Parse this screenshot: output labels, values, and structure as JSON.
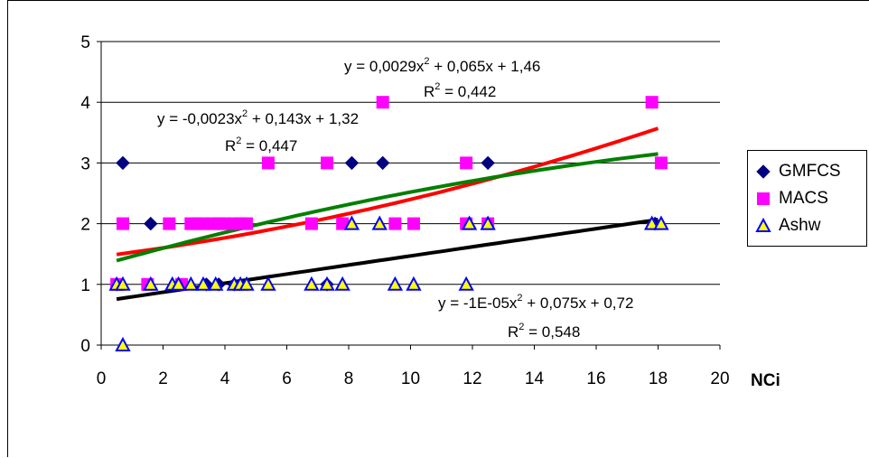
{
  "chart_data": {
    "type": "scatter",
    "xlabel": "NCi",
    "ylabel": "",
    "xlim": [
      0,
      20
    ],
    "ylim": [
      0,
      5
    ],
    "x_ticks": [
      "0",
      "2",
      "4",
      "6",
      "8",
      "10",
      "12",
      "14",
      "16",
      "18",
      "20"
    ],
    "y_ticks": [
      "0",
      "1",
      "2",
      "3",
      "4",
      "5"
    ],
    "grid": "horizontal",
    "legend_position": "right",
    "series": [
      {
        "name": "GMFCS",
        "marker": "diamond",
        "color": "#000080",
        "points": [
          [
            0.5,
            1
          ],
          [
            0.7,
            3
          ],
          [
            1.6,
            2
          ],
          [
            2.5,
            1
          ],
          [
            3.4,
            1
          ],
          [
            3.8,
            1
          ],
          [
            4.3,
            1
          ],
          [
            7.3,
            1
          ],
          [
            8.1,
            3
          ],
          [
            9.1,
            3
          ],
          [
            12.5,
            3
          ],
          [
            17.9,
            2
          ]
        ]
      },
      {
        "name": "MACS",
        "marker": "square",
        "color": "#FF00FF",
        "points": [
          [
            0.5,
            1
          ],
          [
            0.7,
            2
          ],
          [
            1.5,
            1
          ],
          [
            2.2,
            2
          ],
          [
            2.6,
            1
          ],
          [
            2.9,
            2
          ],
          [
            3.1,
            2
          ],
          [
            3.3,
            2
          ],
          [
            3.6,
            2
          ],
          [
            3.8,
            2
          ],
          [
            4.0,
            2
          ],
          [
            4.3,
            2
          ],
          [
            4.5,
            2
          ],
          [
            4.7,
            2
          ],
          [
            5.4,
            3
          ],
          [
            6.8,
            2
          ],
          [
            7.3,
            3
          ],
          [
            7.8,
            2
          ],
          [
            9.1,
            4
          ],
          [
            9.5,
            2
          ],
          [
            10.1,
            2
          ],
          [
            11.8,
            2
          ],
          [
            11.8,
            3
          ],
          [
            12.5,
            2
          ],
          [
            17.8,
            4
          ],
          [
            18.1,
            3
          ]
        ]
      },
      {
        "name": "Ashw",
        "marker": "triangle",
        "color": "#0000FF",
        "fill": "#FFFF00",
        "points": [
          [
            0.5,
            1
          ],
          [
            0.7,
            1
          ],
          [
            0.7,
            0
          ],
          [
            1.6,
            1
          ],
          [
            2.3,
            1
          ],
          [
            2.5,
            1
          ],
          [
            2.9,
            1
          ],
          [
            3.3,
            1
          ],
          [
            3.7,
            1
          ],
          [
            4.3,
            1
          ],
          [
            4.5,
            1
          ],
          [
            4.7,
            1
          ],
          [
            5.4,
            1
          ],
          [
            6.8,
            1
          ],
          [
            7.3,
            1
          ],
          [
            7.8,
            1
          ],
          [
            8.1,
            2
          ],
          [
            9.0,
            2
          ],
          [
            9.5,
            1
          ],
          [
            10.1,
            1
          ],
          [
            11.8,
            1
          ],
          [
            11.9,
            2
          ],
          [
            12.5,
            2
          ],
          [
            17.8,
            2
          ],
          [
            18.1,
            2
          ]
        ]
      }
    ],
    "trendlines": [
      {
        "series": "MACS",
        "color": "#FF0000",
        "a": 0.0029,
        "b": 0.065,
        "c": 1.46,
        "x_range": [
          0.5,
          18
        ],
        "equation": "y = 0,0029x",
        "equation_tail": " + 0,065x + 1,46",
        "r2_value": " = 0,442"
      },
      {
        "series": "GMFCS",
        "color": "#008000",
        "a": -0.0023,
        "b": 0.143,
        "c": 1.32,
        "x_range": [
          0.5,
          18
        ],
        "equation": "y = -0,0023x",
        "equation_tail": " + 0,143x + 1,32",
        "r2_value": " = 0,447"
      },
      {
        "series": "Ashw",
        "color": "#000000",
        "a": -1e-05,
        "b": 0.075,
        "c": 0.72,
        "x_range": [
          0.5,
          18
        ],
        "equation": "y = -1E-05x",
        "equation_tail": " + 0,075x + 0,72",
        "r2_value": " = 0,548"
      }
    ],
    "sq": "2",
    "r2_prefix": "R"
  }
}
